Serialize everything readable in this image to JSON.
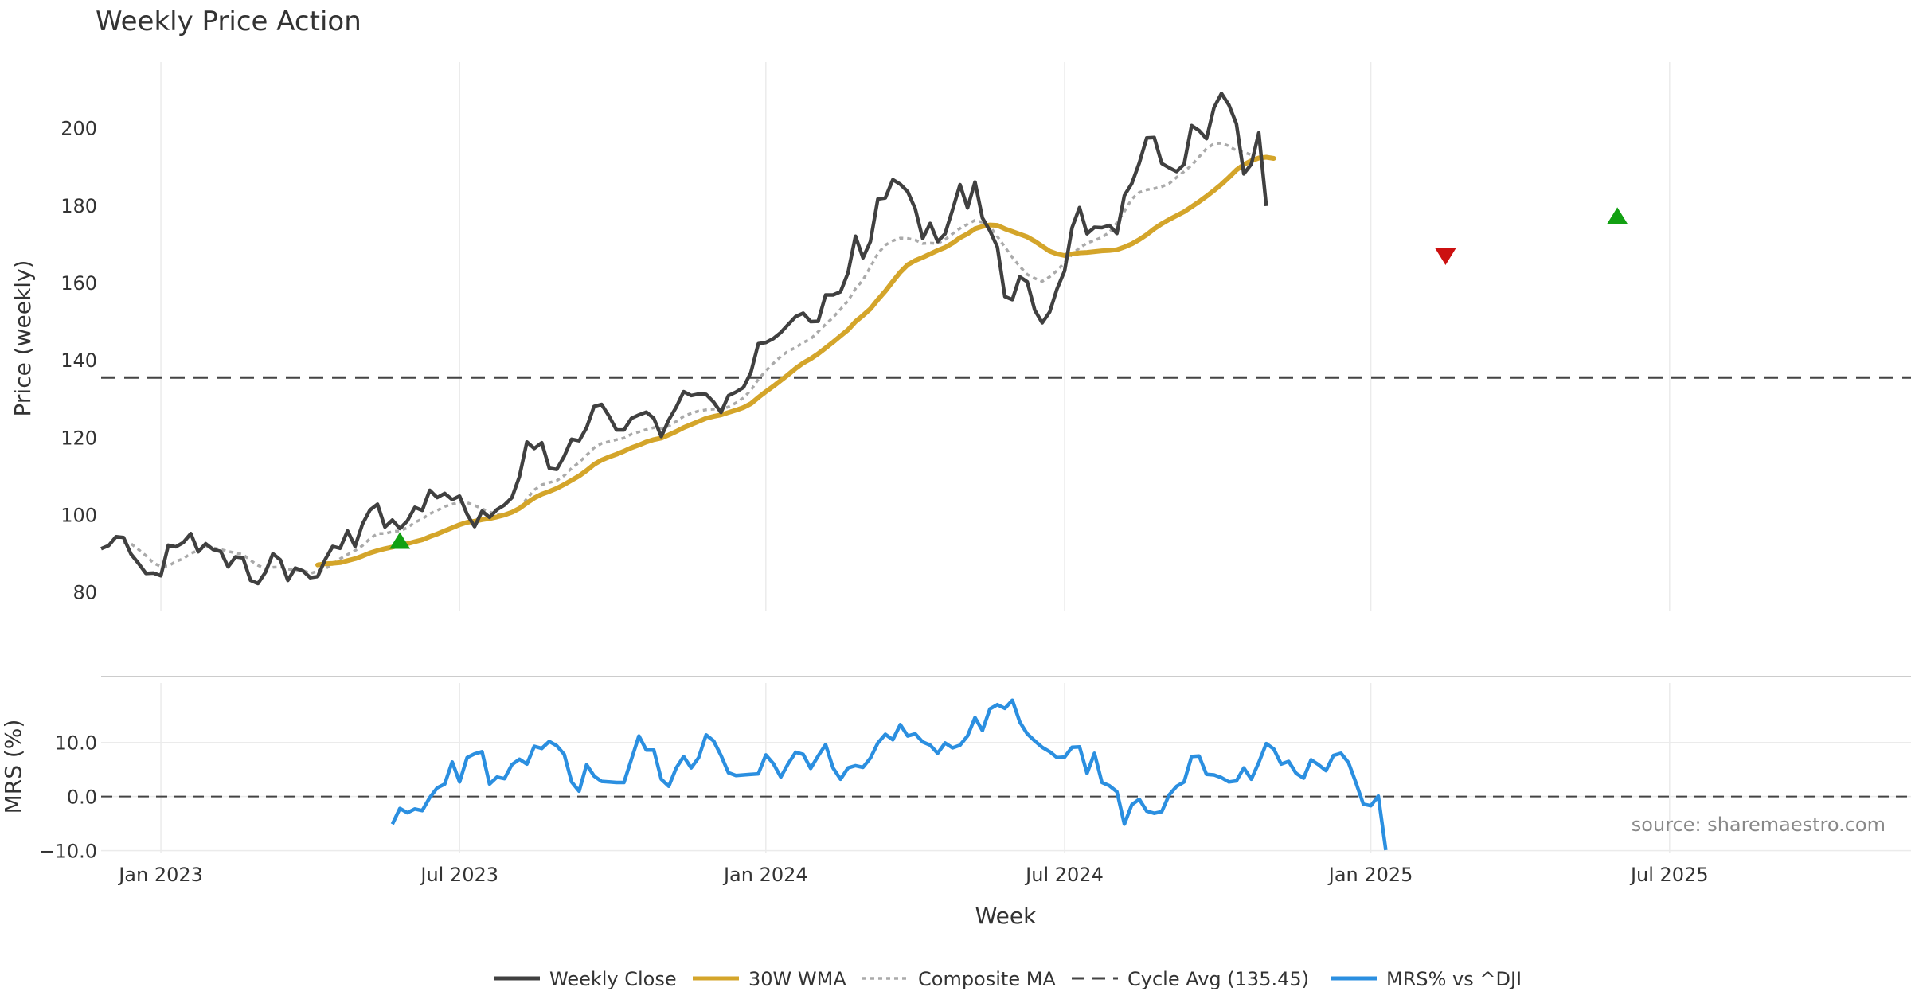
{
  "colors": {
    "close": "#404040",
    "wma": "#d4a52a",
    "composite": "#aaaaaa",
    "cycle": "#444444",
    "mrs": "#2b8fe0",
    "buy": "#12a012",
    "sell": "#cc1010",
    "grid": "#ebebeb"
  },
  "chart_data": {
    "type": "line",
    "title": "Weekly Price Action",
    "xlabel": "Week",
    "source": "source: sharemaestro.com",
    "x_ticks": [
      "Jan 2023",
      "Jul 2023",
      "Jan 2024",
      "Jul 2024",
      "Jan 2025",
      "Jul 2025"
    ],
    "x_tick_weeks": [
      8,
      48,
      89,
      129,
      170,
      210
    ],
    "price_panel": {
      "ylabel": "Price (weekly)",
      "ylim": [
        75,
        217
      ],
      "yticks": [
        80,
        100,
        120,
        140,
        160,
        180,
        200
      ],
      "cycle_avg": 135.45,
      "weekly_close": [
        91.2,
        92.0,
        94.3,
        94.1,
        89.8,
        87.4,
        84.8,
        84.9,
        84.2,
        92.1,
        91.7,
        92.8,
        95.1,
        90.4,
        92.5,
        91.0,
        90.5,
        86.5,
        89.1,
        88.8,
        83.0,
        82.2,
        85.1,
        89.9,
        88.3,
        83.0,
        86.2,
        85.5,
        83.7,
        84.0,
        88.4,
        91.8,
        91.3,
        95.8,
        91.8,
        97.6,
        101.2,
        102.7,
        96.8,
        98.6,
        96.4,
        98.4,
        101.9,
        101.1,
        106.3,
        104.4,
        105.5,
        103.9,
        104.8,
        100.1,
        96.9,
        100.9,
        99.3,
        101.3,
        102.5,
        104.4,
        109.8,
        118.8,
        117.1,
        118.6,
        112.0,
        111.7,
        115.1,
        119.5,
        119.1,
        122.5,
        128.0,
        128.5,
        125.5,
        121.9,
        121.9,
        124.9,
        125.8,
        126.5,
        124.9,
        120.2,
        124.5,
        127.8,
        131.8,
        130.8,
        131.2,
        131.1,
        129.1,
        126.4,
        130.8,
        131.7,
        132.9,
        136.8,
        144.2,
        144.5,
        145.5,
        147.1,
        149.2,
        151.2,
        152.1,
        149.9,
        150.0,
        156.8,
        156.8,
        157.6,
        162.5,
        172.0,
        166.4,
        170.6,
        181.6,
        181.9,
        186.6,
        185.4,
        183.5,
        179.1,
        171.4,
        175.3,
        170.6,
        172.6,
        178.8,
        185.3,
        179.3,
        186.0,
        176.7,
        173.4,
        169.2,
        156.4,
        155.6,
        161.5,
        160.2,
        152.9,
        149.6,
        152.4,
        158.4,
        163.0,
        174.2,
        179.4,
        172.6,
        174.3,
        174.2,
        174.8,
        172.7,
        182.5,
        185.6,
        190.9,
        197.4,
        197.5,
        190.8,
        189.7,
        188.7,
        190.6,
        200.6,
        199.3,
        197.2,
        205.2,
        208.9,
        205.9,
        201.0,
        188.1,
        190.6,
        198.7,
        179.8
      ],
      "wma_30w": [
        null,
        null,
        null,
        null,
        null,
        null,
        null,
        null,
        null,
        null,
        null,
        null,
        null,
        null,
        null,
        null,
        null,
        null,
        null,
        null,
        null,
        null,
        null,
        null,
        null,
        null,
        null,
        null,
        null,
        87.0,
        87.3,
        87.4,
        87.6,
        88.1,
        88.6,
        89.3,
        90.1,
        90.7,
        91.2,
        91.6,
        92.1,
        92.5,
        93.0,
        93.5,
        94.3,
        95.0,
        95.8,
        96.6,
        97.4,
        98.0,
        98.3,
        98.7,
        99.0,
        99.4,
        99.9,
        100.6,
        101.6,
        103.0,
        104.3,
        105.3,
        106.0,
        106.8,
        107.8,
        108.9,
        110.0,
        111.4,
        113.0,
        114.1,
        114.9,
        115.6,
        116.4,
        117.3,
        118.0,
        118.8,
        119.4,
        119.8,
        120.6,
        121.5,
        122.5,
        123.3,
        124.1,
        124.9,
        125.4,
        125.8,
        126.4,
        127.0,
        127.7,
        128.7,
        130.3,
        131.8,
        133.2,
        134.7,
        136.2,
        137.8,
        139.2,
        140.3,
        141.6,
        143.1,
        144.6,
        146.2,
        147.8,
        149.9,
        151.5,
        153.2,
        155.6,
        157.8,
        160.3,
        162.7,
        164.6,
        165.7,
        166.5,
        167.4,
        168.3,
        169.1,
        170.2,
        171.6,
        172.6,
        173.9,
        174.5,
        174.9,
        174.8,
        173.9,
        173.2,
        172.5,
        171.8,
        170.7,
        169.4,
        168.1,
        167.4,
        167.0,
        167.4,
        167.7,
        167.8,
        168.0,
        168.2,
        168.3,
        168.5,
        169.2,
        170.0,
        171.1,
        172.4,
        173.9,
        175.2,
        176.3,
        177.3,
        178.3,
        179.6,
        180.9,
        182.3,
        183.8,
        185.4,
        187.2,
        189.1,
        190.5,
        191.5,
        192.2,
        192.4,
        192.1
      ],
      "composite_ma": [
        null,
        null,
        null,
        92.8,
        92.5,
        91.0,
        89.4,
        87.5,
        86.6,
        86.7,
        87.9,
        88.6,
        90.0,
        90.7,
        91.7,
        91.4,
        91.0,
        90.5,
        90.1,
        89.7,
        88.2,
        86.9,
        86.1,
        86.4,
        86.5,
        85.9,
        85.7,
        85.6,
        84.8,
        85.4,
        86.0,
        87.2,
        88.6,
        89.7,
        90.7,
        92.0,
        93.8,
        95.1,
        95.1,
        95.6,
        95.8,
        96.6,
        98.0,
        98.9,
        100.2,
        101.1,
        102.1,
        102.7,
        103.3,
        103.1,
        102.4,
        101.5,
        100.7,
        100.0,
        99.8,
        100.5,
        101.8,
        104.1,
        106.4,
        107.7,
        108.3,
        108.8,
        110.1,
        112.0,
        113.5,
        115.4,
        117.3,
        118.4,
        118.9,
        119.4,
        119.8,
        120.8,
        121.4,
        122.0,
        122.5,
        122.3,
        122.9,
        124.1,
        125.4,
        126.2,
        126.8,
        127.1,
        127.3,
        127.1,
        127.9,
        128.9,
        130.2,
        132.2,
        135.0,
        137.2,
        139.1,
        140.9,
        142.3,
        143.2,
        144.5,
        145.4,
        147.3,
        149.2,
        151.0,
        153.1,
        155.3,
        158.4,
        160.7,
        164.0,
        167.5,
        169.7,
        170.8,
        171.5,
        171.4,
        171.0,
        170.1,
        170.2,
        170.1,
        171.1,
        172.6,
        174.0,
        175.1,
        176.1,
        175.6,
        174.5,
        171.9,
        169.2,
        166.5,
        164.2,
        162.1,
        161.1,
        160.3,
        161.5,
        163.1,
        165.2,
        167.3,
        169.0,
        170.2,
        170.9,
        171.7,
        173.0,
        175.5,
        178.4,
        181.6,
        183.3,
        184.0,
        184.3,
        184.8,
        185.6,
        187.2,
        188.7,
        190.3,
        192.5,
        194.6,
        195.9,
        196.0,
        195.3,
        194.1,
        193.7,
        193.0
      ],
      "buy_markers": [
        [
          40,
          93
        ],
        [
          203,
          177
        ]
      ],
      "sell_markers": [
        [
          180,
          167
        ]
      ]
    },
    "mrs_panel": {
      "ylabel": "MRS (%)",
      "ylim": [
        -10.5,
        21
      ],
      "yticks": [
        -10,
        0,
        10
      ],
      "ytick_labels": [
        "−10.0",
        "0.0",
        "10.0"
      ],
      "zero_line": 0,
      "mrs": [
        null,
        null,
        null,
        null,
        null,
        null,
        null,
        null,
        null,
        null,
        null,
        null,
        null,
        null,
        null,
        null,
        null,
        null,
        null,
        null,
        null,
        null,
        null,
        null,
        null,
        null,
        null,
        null,
        null,
        null,
        null,
        null,
        null,
        null,
        null,
        null,
        null,
        null,
        null,
        -5.1,
        -2.2,
        -3.0,
        -2.3,
        -2.6,
        -0.2,
        1.6,
        2.3,
        6.4,
        2.7,
        7.2,
        7.9,
        8.3,
        2.3,
        3.6,
        3.3,
        5.9,
        6.9,
        6.0,
        9.3,
        8.9,
        10.2,
        9.4,
        7.8,
        2.7,
        1.0,
        5.9,
        3.8,
        2.8,
        2.7,
        2.6,
        2.6,
        6.9,
        11.2,
        8.6,
        8.6,
        3.2,
        1.9,
        5.3,
        7.4,
        5.3,
        7.2,
        11.4,
        10.3,
        7.6,
        4.4,
        3.9,
        4.0,
        4.1,
        4.2,
        7.7,
        6.1,
        3.6,
        6.1,
        8.2,
        7.8,
        5.2,
        7.5,
        9.6,
        5.3,
        3.2,
        5.3,
        5.7,
        5.4,
        7.1,
        9.9,
        11.5,
        10.5,
        13.3,
        11.2,
        11.6,
        10.1,
        9.5,
        8.0,
        9.9,
        9.0,
        9.5,
        11.2,
        14.6,
        12.2,
        16.2,
        17.0,
        16.3,
        17.8,
        13.8,
        11.6,
        10.3,
        9.1,
        8.3,
        7.2,
        7.3,
        9.1,
        9.2,
        4.3,
        8.0,
        2.6,
        2.0,
        0.9,
        -5.1,
        -1.5,
        -0.5,
        -2.7,
        -3.1,
        -2.8,
        0.3,
        1.9,
        2.7,
        7.4,
        7.5,
        4.1,
        4.0,
        3.5,
        2.7,
        2.9,
        5.3,
        3.2,
        6.3,
        9.8,
        8.8,
        6.0,
        6.5,
        4.3,
        3.4,
        6.8,
        5.9,
        4.8,
        7.6,
        8.0,
        6.3,
        2.6,
        -1.4,
        -1.7,
        0.1,
        -9.9
      ]
    },
    "legend": [
      {
        "key": "close",
        "label": "Weekly Close",
        "style": "solid"
      },
      {
        "key": "wma",
        "label": "30W WMA",
        "style": "solid"
      },
      {
        "key": "composite",
        "label": "Composite MA",
        "style": "dotted"
      },
      {
        "key": "cycle",
        "label": "Cycle Avg (135.45)",
        "style": "dashed"
      },
      {
        "key": "mrs",
        "label": "MRS% vs ^DJI",
        "style": "solid"
      }
    ]
  }
}
